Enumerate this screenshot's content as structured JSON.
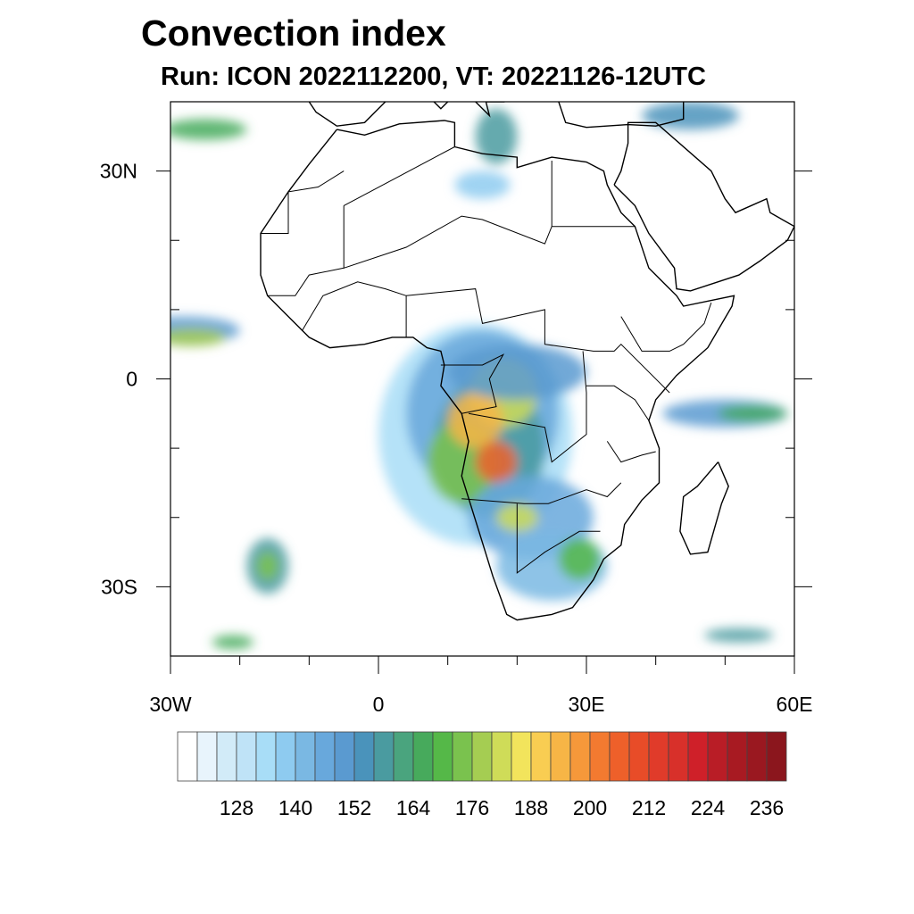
{
  "title": "Convection index",
  "subtitle": "Run: ICON 2022112200,  VT: 20221126-12UTC",
  "map": {
    "lon_range": [
      -30,
      60
    ],
    "lat_range": [
      -40,
      40
    ],
    "x_ticks": [
      {
        "v": -30,
        "label": "30W"
      },
      {
        "v": 0,
        "label": "0"
      },
      {
        "v": 30,
        "label": "30E"
      },
      {
        "v": 60,
        "label": "60E"
      }
    ],
    "y_ticks": [
      {
        "v": 30,
        "label": "30N"
      },
      {
        "v": 0,
        "label": "0"
      },
      {
        "v": -30,
        "label": "30S"
      }
    ]
  },
  "colorbar": {
    "levels_start": 120,
    "levels_step": 4,
    "labels": [
      "128",
      "140",
      "152",
      "164",
      "176",
      "188",
      "200",
      "212",
      "224",
      "236"
    ],
    "colors": [
      "#ffffff",
      "#e8f4fc",
      "#d2ebf8",
      "#bfe3f7",
      "#a8ddf7",
      "#8ecbf0",
      "#7ab8e3",
      "#68a8dc",
      "#5a9ad0",
      "#4a93bb",
      "#4a9ba0",
      "#4aa47e",
      "#47aa5c",
      "#55b848",
      "#7ac24e",
      "#a5cd52",
      "#cfdc58",
      "#f2e45c",
      "#f9cd52",
      "#f7b546",
      "#f6983a",
      "#f37a30",
      "#ee602a",
      "#e84c28",
      "#e03b2a",
      "#d8302a",
      "#cf2029",
      "#b91d26",
      "#a81a22",
      "#9a1820",
      "#8b161d"
    ]
  }
}
